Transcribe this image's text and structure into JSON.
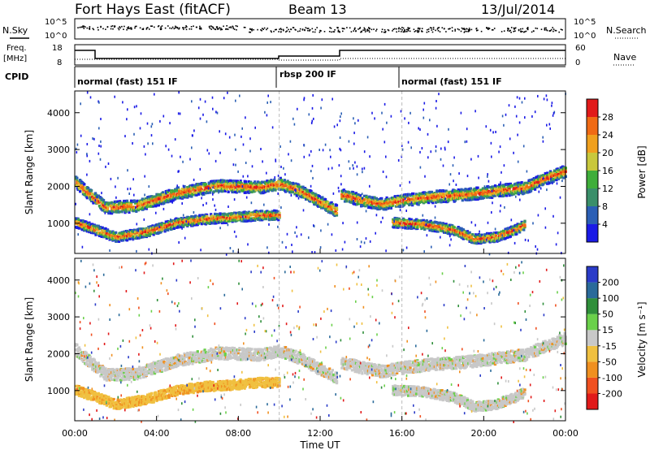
{
  "header": {
    "station": "Fort Hays East (fitACF)",
    "beam": "Beam 13",
    "date": "13/Jul/2014"
  },
  "top_panels": {
    "nsky_label": "N.Sky",
    "nsearch_label": "N.Search",
    "noise_ticks": [
      "10^5",
      "10^0"
    ],
    "freq_label_line1": "Freq.",
    "freq_label_line2": "[MHz]",
    "freq_ticks": [
      "18",
      "8"
    ],
    "nave_label": "Nave",
    "nave_ticks": [
      "60",
      "0"
    ],
    "cpid_label": "CPID",
    "cpid_segments": [
      {
        "label": "normal (fast) 151 IF",
        "start_hour": 0
      },
      {
        "label": "rbsp 200 IF",
        "start_hour": 10
      },
      {
        "label": "normal (fast) 151 IF",
        "start_hour": 16
      }
    ]
  },
  "colors": {
    "power_scale": [
      "#1a1ae6",
      "#2b5fb5",
      "#3a8f6a",
      "#3fae3a",
      "#c8c83c",
      "#f0a01e",
      "#f06a14",
      "#e11a1a"
    ],
    "velocity_scale": [
      "#2a3bc8",
      "#2a6a9a",
      "#2f8f3a",
      "#6ad04a",
      "#c8c8c8",
      "#f0c040",
      "#f09020",
      "#f05020",
      "#e11a1a"
    ]
  },
  "chart_data": [
    {
      "type": "heatmap",
      "panel": "power",
      "ylabel": "Slant Range [km]",
      "ylim": [
        180,
        4590
      ],
      "yticks": [
        "1000",
        "2000",
        "3000",
        "4000"
      ],
      "xlim": [
        0,
        24
      ],
      "colorbar_label": "Power [dB]",
      "colorbar_ticks": [
        "4",
        "8",
        "12",
        "16",
        "20",
        "24",
        "28"
      ],
      "bands": [
        {
          "x": [
            0,
            0.5,
            1.5,
            3,
            5,
            7,
            9,
            10,
            11,
            12,
            12.8
          ],
          "y": [
            2150,
            1900,
            1450,
            1500,
            1850,
            2050,
            2000,
            2100,
            1900,
            1600,
            1350
          ]
        },
        {
          "x": [
            0,
            1,
            2,
            3.5,
            5,
            6.5,
            8,
            9,
            10
          ],
          "y": [
            1050,
            850,
            650,
            800,
            1050,
            1150,
            1200,
            1250,
            1250
          ]
        },
        {
          "x": [
            13,
            14,
            15,
            16,
            17.5,
            19,
            20.5,
            22,
            23,
            24
          ],
          "y": [
            1800,
            1650,
            1550,
            1650,
            1750,
            1800,
            1900,
            2000,
            2250,
            2450
          ]
        },
        {
          "x": [
            15.5,
            17,
            18.5,
            19.5,
            20.5,
            21.5,
            22
          ],
          "y": [
            1050,
            1000,
            850,
            600,
            650,
            850,
            1000
          ]
        }
      ]
    },
    {
      "type": "heatmap",
      "panel": "velocity",
      "ylabel": "Slant Range [km]",
      "ylim": [
        180,
        4590
      ],
      "yticks": [
        "1000",
        "2000",
        "3000",
        "4000"
      ],
      "xlabel": "Time UT",
      "xlim": [
        0,
        24
      ],
      "xticks": [
        "00:00",
        "04:00",
        "08:00",
        "12:00",
        "16:00",
        "20:00",
        "00:00"
      ],
      "colorbar_label": "Velocity [m s⁻¹]",
      "colorbar_ticks": [
        "200",
        "100",
        "50",
        "15",
        "-15",
        "-50",
        "-100",
        "-200"
      ],
      "bands": [
        {
          "x": [
            0,
            0.5,
            1.5,
            3,
            5,
            7,
            9,
            10,
            11,
            12,
            12.8
          ],
          "y": [
            2150,
            1900,
            1450,
            1500,
            1850,
            2050,
            2000,
            2100,
            1900,
            1600,
            1350
          ]
        },
        {
          "x": [
            0,
            1,
            2,
            3.5,
            5,
            6.5,
            8,
            9,
            10
          ],
          "y": [
            1050,
            850,
            650,
            800,
            1050,
            1150,
            1200,
            1250,
            1250
          ]
        },
        {
          "x": [
            13,
            14,
            15,
            16,
            17.5,
            19,
            20.5,
            22,
            23,
            24
          ],
          "y": [
            1800,
            1650,
            1550,
            1650,
            1750,
            1800,
            1900,
            2000,
            2250,
            2450
          ]
        },
        {
          "x": [
            15.5,
            17,
            18.5,
            19.5,
            20.5,
            21.5,
            22
          ],
          "y": [
            1050,
            1000,
            850,
            600,
            650,
            850,
            1000
          ]
        }
      ]
    }
  ]
}
